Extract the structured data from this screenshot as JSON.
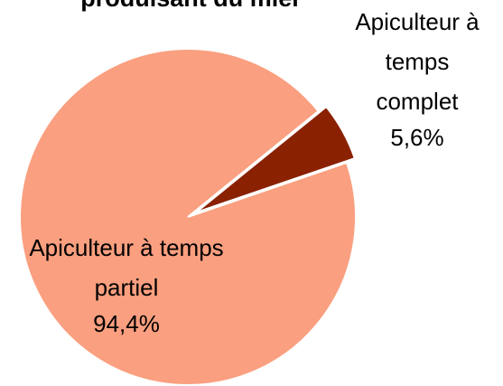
{
  "chart_data": {
    "type": "pie",
    "title": "produisant du miel",
    "categories": [
      "Apiculteur à temps complet",
      "Apiculteur à temps partiel"
    ],
    "values": [
      5.6,
      94.4
    ],
    "value_labels": [
      "5,6%",
      "94,4%"
    ],
    "colors": [
      "#8a2100",
      "#fa9f7f"
    ]
  }
}
